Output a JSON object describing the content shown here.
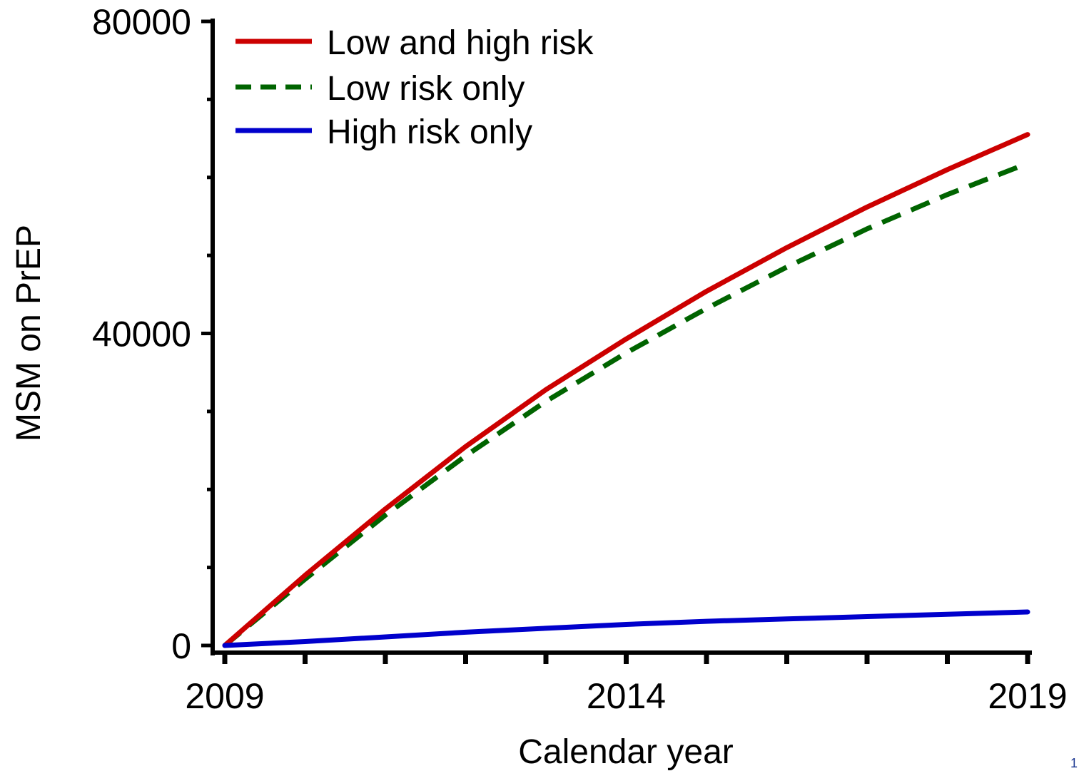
{
  "chart_data": {
    "type": "line",
    "title": "",
    "xlabel": "Calendar year",
    "ylabel": "MSM on PrEP",
    "xlim": [
      2009,
      2019
    ],
    "ylim": [
      0,
      80000
    ],
    "x_ticks": [
      2009,
      2014,
      2019
    ],
    "y_ticks": [
      0,
      40000,
      80000
    ],
    "grid": false,
    "legend_position": "top-left",
    "x": [
      2009,
      2010,
      2011,
      2012,
      2013,
      2014,
      2015,
      2016,
      2017,
      2018,
      2019
    ],
    "series": [
      {
        "name": "Low and high risk",
        "color": "#cc0000",
        "style": "solid",
        "values": [
          0,
          9000,
          17500,
          25500,
          32800,
          39300,
          45400,
          51000,
          56200,
          61000,
          65500
        ]
      },
      {
        "name": "Low risk only",
        "color": "#006400",
        "style": "dashed",
        "values": [
          0,
          8500,
          16700,
          24300,
          31300,
          37500,
          43200,
          48500,
          53400,
          57800,
          61800
        ]
      },
      {
        "name": "High risk only",
        "color": "#0000cc",
        "style": "solid",
        "values": [
          0,
          500,
          1100,
          1700,
          2200,
          2700,
          3100,
          3400,
          3700,
          4000,
          4300
        ]
      }
    ]
  },
  "corner_mark": "1"
}
